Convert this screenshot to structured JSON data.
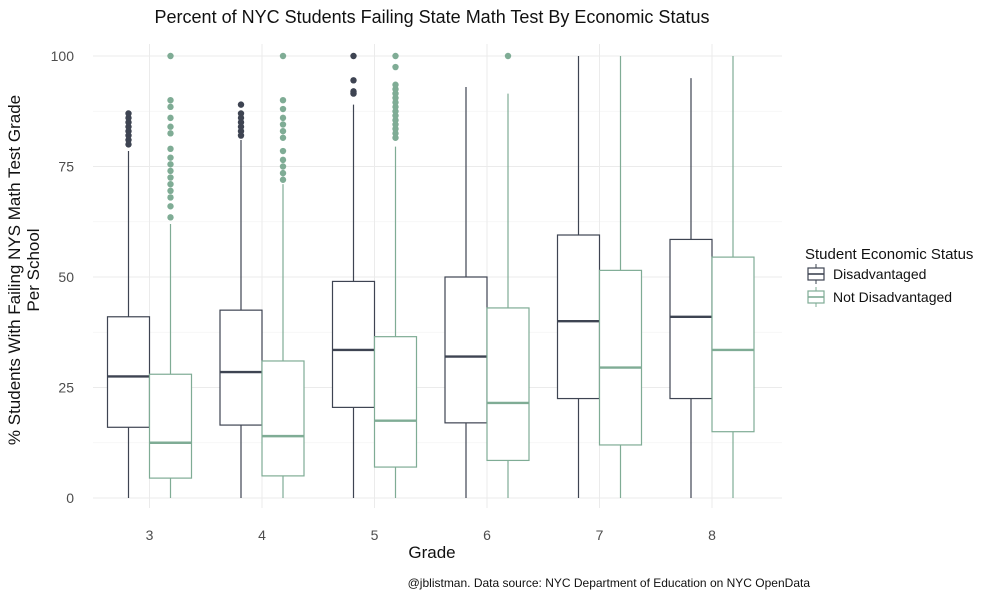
{
  "chart_data": {
    "type": "boxplot",
    "title": "Percent of NYC Students Failing State Math Test By Economic Status",
    "xlabel": "Grade",
    "ylabel_lines": [
      "% Students With Failing NYS Math Test Grade",
      "Per School"
    ],
    "caption": "@jblistman. Data source: NYC Department of Education on NYC OpenData",
    "categories": [
      "3",
      "4",
      "5",
      "6",
      "7",
      "8"
    ],
    "ylim": [
      0,
      100
    ],
    "yticks": [
      0,
      25,
      50,
      75,
      100
    ],
    "grid": true,
    "legend": {
      "title": "Student Economic Status",
      "placement": "right",
      "entries": [
        "Disadvantaged",
        "Not Disadvantaged"
      ]
    },
    "series": [
      {
        "name": "Disadvantaged",
        "color": "#3e4452",
        "boxes": [
          {
            "whisker_low": 0,
            "q1": 16,
            "median": 27.5,
            "q3": 41,
            "whisker_high": 78.5,
            "outliers": [
              80,
              81,
              82,
              83,
              84,
              85,
              86,
              87
            ]
          },
          {
            "whisker_low": 0,
            "q1": 16.5,
            "median": 28.5,
            "q3": 42.5,
            "whisker_high": 81,
            "outliers": [
              82,
              83,
              84,
              85,
              86,
              87,
              89
            ]
          },
          {
            "whisker_low": 0,
            "q1": 20.5,
            "median": 33.5,
            "q3": 49,
            "whisker_high": 89,
            "outliers": [
              91.5,
              92,
              94.5,
              100
            ]
          },
          {
            "whisker_low": 0,
            "q1": 17,
            "median": 32,
            "q3": 50,
            "whisker_high": 93,
            "outliers": []
          },
          {
            "whisker_low": 0,
            "q1": 22.5,
            "median": 40,
            "q3": 59.5,
            "whisker_high": 100,
            "outliers": []
          },
          {
            "whisker_low": 0,
            "q1": 22.5,
            "median": 41,
            "q3": 58.5,
            "whisker_high": 95,
            "outliers": []
          }
        ]
      },
      {
        "name": "Not Disadvantaged",
        "color": "#7fac95",
        "boxes": [
          {
            "whisker_low": 0,
            "q1": 4.5,
            "median": 12.5,
            "q3": 28,
            "whisker_high": 62,
            "outliers": [
              63.5,
              66,
              68,
              69.5,
              71,
              72.5,
              74,
              75.5,
              77,
              79,
              82.5,
              84,
              86,
              88.5,
              90,
              100
            ]
          },
          {
            "whisker_low": 0,
            "q1": 5,
            "median": 14,
            "q3": 31,
            "whisker_high": 71,
            "outliers": [
              72,
              73.5,
              75,
              76.5,
              78.5,
              81.5,
              83,
              84.5,
              86,
              88,
              90,
              100
            ]
          },
          {
            "whisker_low": 0,
            "q1": 7,
            "median": 17.5,
            "q3": 36.5,
            "whisker_high": 79.5,
            "outliers": [
              81.5,
              82.5,
              83.5,
              84.5,
              85.5,
              86.5,
              87.5,
              88.5,
              89.5,
              90.5,
              91.5,
              92.5,
              93.5,
              97.5,
              100
            ]
          },
          {
            "whisker_low": 0,
            "q1": 8.5,
            "median": 21.5,
            "q3": 43,
            "whisker_high": 91.5,
            "outliers": [
              100
            ]
          },
          {
            "whisker_low": 0,
            "q1": 12,
            "median": 29.5,
            "q3": 51.5,
            "whisker_high": 100,
            "outliers": []
          },
          {
            "whisker_low": 0,
            "q1": 15,
            "median": 33.5,
            "q3": 54.5,
            "whisker_high": 100,
            "outliers": []
          }
        ]
      }
    ]
  }
}
